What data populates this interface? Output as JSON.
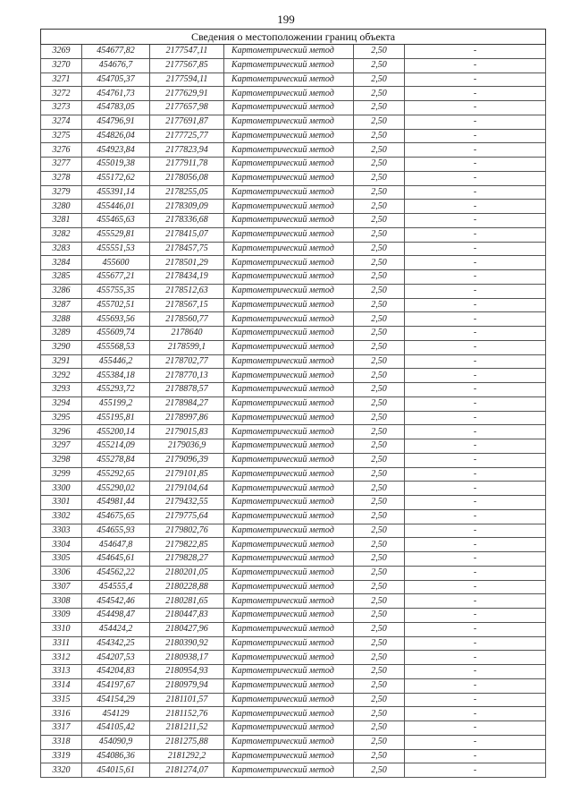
{
  "page_number": "199",
  "table": {
    "title": "Сведения о местоположении границ объекта",
    "rows": [
      [
        "3269",
        "454677,82",
        "2177547,11",
        "Картометрический метод",
        "2,50",
        "-"
      ],
      [
        "3270",
        "454676,7",
        "2177567,85",
        "Картометрический метод",
        "2,50",
        "-"
      ],
      [
        "3271",
        "454705,37",
        "2177594,11",
        "Картометрический метод",
        "2,50",
        "-"
      ],
      [
        "3272",
        "454761,73",
        "2177629,91",
        "Картометрический метод",
        "2,50",
        "-"
      ],
      [
        "3273",
        "454783,05",
        "2177657,98",
        "Картометрический метод",
        "2,50",
        "-"
      ],
      [
        "3274",
        "454796,91",
        "2177691,87",
        "Картометрический метод",
        "2,50",
        "-"
      ],
      [
        "3275",
        "454826,04",
        "2177725,77",
        "Картометрический метод",
        "2,50",
        "-"
      ],
      [
        "3276",
        "454923,84",
        "2177823,94",
        "Картометрический метод",
        "2,50",
        "-"
      ],
      [
        "3277",
        "455019,38",
        "2177911,78",
        "Картометрический метод",
        "2,50",
        "-"
      ],
      [
        "3278",
        "455172,62",
        "2178056,08",
        "Картометрический метод",
        "2,50",
        "-"
      ],
      [
        "3279",
        "455391,14",
        "2178255,05",
        "Картометрический метод",
        "2,50",
        "-"
      ],
      [
        "3280",
        "455446,01",
        "2178309,09",
        "Картометрический метод",
        "2,50",
        "-"
      ],
      [
        "3281",
        "455465,63",
        "2178336,68",
        "Картометрический метод",
        "2,50",
        "-"
      ],
      [
        "3282",
        "455529,81",
        "2178415,07",
        "Картометрический метод",
        "2,50",
        "-"
      ],
      [
        "3283",
        "455551,53",
        "2178457,75",
        "Картометрический метод",
        "2,50",
        "-"
      ],
      [
        "3284",
        "455600",
        "2178501,29",
        "Картометрический метод",
        "2,50",
        "-"
      ],
      [
        "3285",
        "455677,21",
        "2178434,19",
        "Картометрический метод",
        "2,50",
        "-"
      ],
      [
        "3286",
        "455755,35",
        "2178512,63",
        "Картометрический метод",
        "2,50",
        "-"
      ],
      [
        "3287",
        "455702,51",
        "2178567,15",
        "Картометрический метод",
        "2,50",
        "-"
      ],
      [
        "3288",
        "455693,56",
        "2178560,77",
        "Картометрический метод",
        "2,50",
        "-"
      ],
      [
        "3289",
        "455609,74",
        "2178640",
        "Картометрический метод",
        "2,50",
        "-"
      ],
      [
        "3290",
        "455568,53",
        "2178599,1",
        "Картометрический метод",
        "2,50",
        "-"
      ],
      [
        "3291",
        "455446,2",
        "2178702,77",
        "Картометрический метод",
        "2,50",
        "-"
      ],
      [
        "3292",
        "455384,18",
        "2178770,13",
        "Картометрический метод",
        "2,50",
        "-"
      ],
      [
        "3293",
        "455293,72",
        "2178878,57",
        "Картометрический метод",
        "2,50",
        "-"
      ],
      [
        "3294",
        "455199,2",
        "2178984,27",
        "Картометрический метод",
        "2,50",
        "-"
      ],
      [
        "3295",
        "455195,81",
        "2178997,86",
        "Картометрический метод",
        "2,50",
        "-"
      ],
      [
        "3296",
        "455200,14",
        "2179015,83",
        "Картометрический метод",
        "2,50",
        "-"
      ],
      [
        "3297",
        "455214,09",
        "2179036,9",
        "Картометрический метод",
        "2,50",
        "-"
      ],
      [
        "3298",
        "455278,84",
        "2179096,39",
        "Картометрический метод",
        "2,50",
        "-"
      ],
      [
        "3299",
        "455292,65",
        "2179101,85",
        "Картометрический метод",
        "2,50",
        "-"
      ],
      [
        "3300",
        "455290,02",
        "2179104,64",
        "Картометрический метод",
        "2,50",
        "-"
      ],
      [
        "3301",
        "454981,44",
        "2179432,55",
        "Картометрический метод",
        "2,50",
        "-"
      ],
      [
        "3302",
        "454675,65",
        "2179775,64",
        "Картометрический метод",
        "2,50",
        "-"
      ],
      [
        "3303",
        "454655,93",
        "2179802,76",
        "Картометрический метод",
        "2,50",
        "-"
      ],
      [
        "3304",
        "454647,8",
        "2179822,85",
        "Картометрический метод",
        "2,50",
        "-"
      ],
      [
        "3305",
        "454645,61",
        "2179828,27",
        "Картометрический метод",
        "2,50",
        "-"
      ],
      [
        "3306",
        "454562,22",
        "2180201,05",
        "Картометрический метод",
        "2,50",
        "-"
      ],
      [
        "3307",
        "454555,4",
        "2180228,88",
        "Картометрический метод",
        "2,50",
        "-"
      ],
      [
        "3308",
        "454542,46",
        "2180281,65",
        "Картометрический метод",
        "2,50",
        "-"
      ],
      [
        "3309",
        "454498,47",
        "2180447,83",
        "Картометрический метод",
        "2,50",
        "-"
      ],
      [
        "3310",
        "454424,2",
        "2180427,96",
        "Картометрический метод",
        "2,50",
        "-"
      ],
      [
        "3311",
        "454342,25",
        "2180390,92",
        "Картометрический метод",
        "2,50",
        "-"
      ],
      [
        "3312",
        "454207,53",
        "2180938,17",
        "Картометрический метод",
        "2,50",
        "-"
      ],
      [
        "3313",
        "454204,83",
        "2180954,93",
        "Картометрический метод",
        "2,50",
        "-"
      ],
      [
        "3314",
        "454197,67",
        "2180979,94",
        "Картометрический метод",
        "2,50",
        "-"
      ],
      [
        "3315",
        "454154,29",
        "2181101,57",
        "Картометрический метод",
        "2,50",
        "-"
      ],
      [
        "3316",
        "454129",
        "2181152,76",
        "Картометрический метод",
        "2,50",
        "-"
      ],
      [
        "3317",
        "454105,42",
        "2181211,52",
        "Картометрический метод",
        "2,50",
        "-"
      ],
      [
        "3318",
        "454090,9",
        "2181275,88",
        "Картометрический метод",
        "2,50",
        "-"
      ],
      [
        "3319",
        "454086,36",
        "2181292,2",
        "Картометрический метод",
        "2,50",
        "-"
      ],
      [
        "3320",
        "454015,61",
        "2181274,07",
        "Картометрический метод",
        "2,50",
        "-"
      ]
    ]
  }
}
